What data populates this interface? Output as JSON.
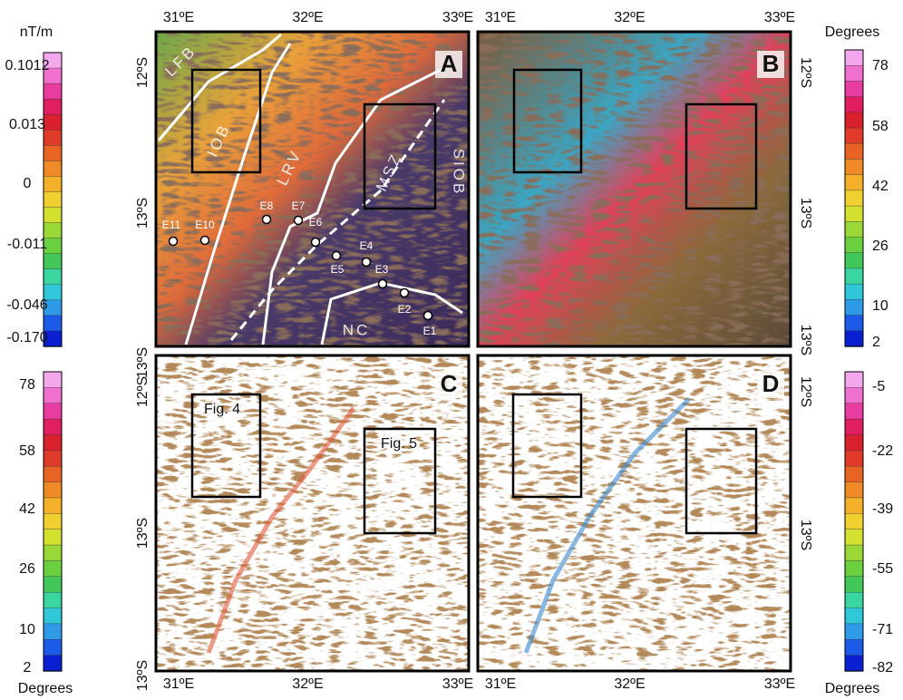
{
  "panels": [
    {
      "label": "A",
      "top_ticks": [
        "31ºE",
        "32ºE",
        "33ºE"
      ],
      "side_ticks": [
        "12ºS",
        "13ºS"
      ],
      "annotations": [
        "LFB",
        "IOB",
        "LRV",
        "MSZ",
        "SIOB",
        "NC"
      ],
      "sites": [
        "E1",
        "E2",
        "E3",
        "E4",
        "E5",
        "E6",
        "E7",
        "E8",
        "E10",
        "E11"
      ]
    },
    {
      "label": "B",
      "top_ticks": [
        "31ºE",
        "32ºE",
        "33ºE"
      ],
      "side_ticks": [
        "12ºS",
        "13ºS",
        "13ºS"
      ]
    },
    {
      "label": "C",
      "bottom_ticks": [
        "31ºE",
        "32ºE",
        "33ºE"
      ],
      "side_ticks": [
        "13ºS",
        "12ºS",
        "13ºS",
        "13ºS"
      ],
      "annotations": [
        "Fig. 4",
        "Fig. 5"
      ]
    },
    {
      "label": "D",
      "bottom_ticks": [
        "31ºE",
        "32ºE",
        "33ºE"
      ],
      "side_ticks": [
        "12ºS",
        "13ºS"
      ]
    }
  ],
  "colorbars": [
    {
      "unit": "nT/m",
      "labels": [
        "0.1012",
        "0.013",
        "0",
        "-0.011",
        "-0.046",
        "-0.170"
      ]
    },
    {
      "unit": "Degrees",
      "labels": [
        "78",
        "58",
        "42",
        "26",
        "10",
        "2"
      ]
    },
    {
      "unit": "Degrees",
      "labels": [
        "78",
        "58",
        "42",
        "26",
        "10",
        "2"
      ]
    },
    {
      "unit": "Degrees",
      "labels": [
        "-5",
        "-22",
        "-39",
        "-55",
        "-71",
        "-82"
      ]
    }
  ]
}
